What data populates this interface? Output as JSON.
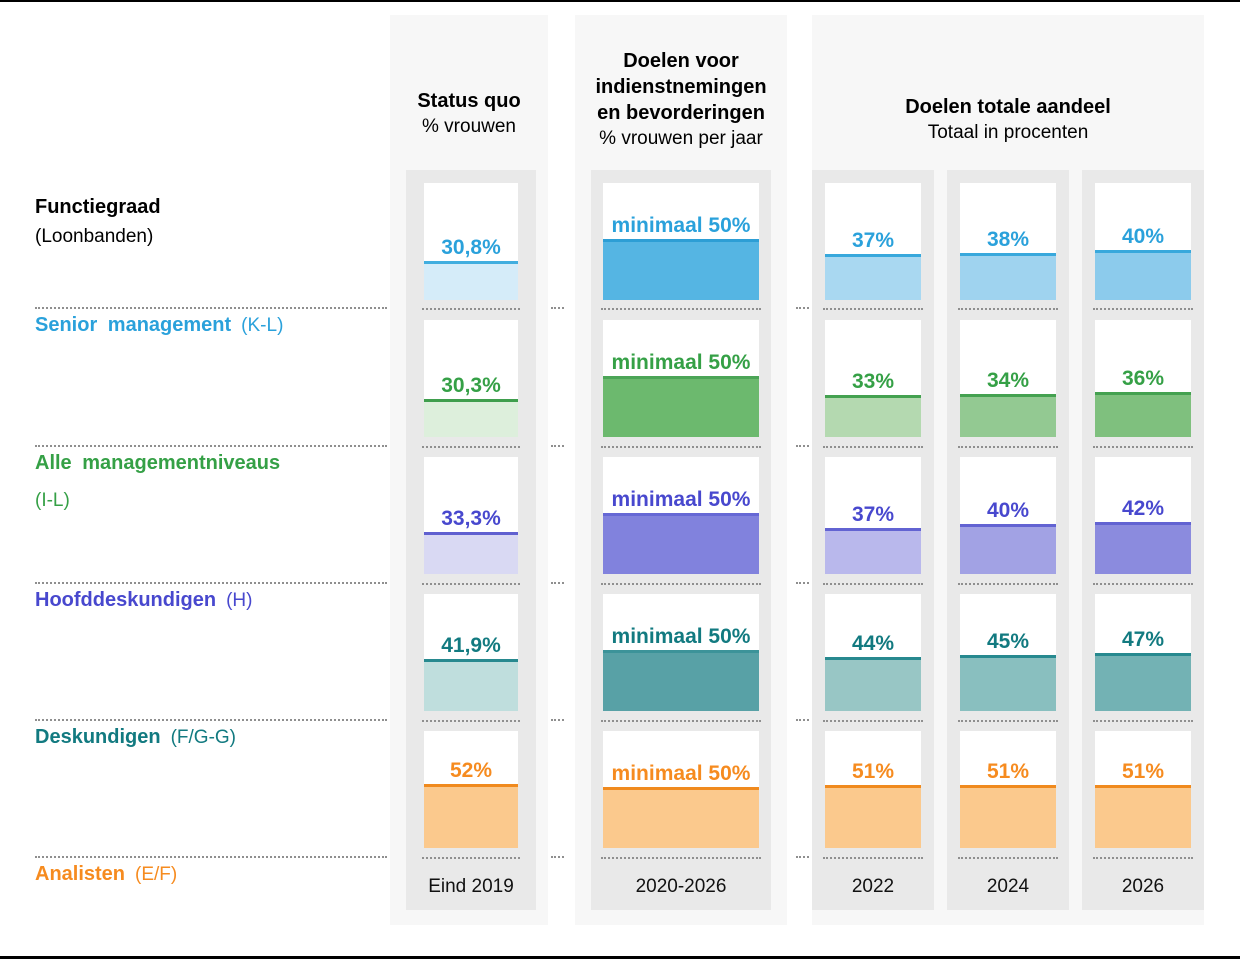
{
  "palette": {
    "panel_bg": "#f7f7f7",
    "strip_bg": "#e9e9e9",
    "separator_dots": "#8f8f8f",
    "rule": "#000000"
  },
  "left_column": {
    "title": "Functiegraad",
    "subtitle": "(Loonbanden)"
  },
  "columns": {
    "status": {
      "title": "Status quo",
      "subtitle": "% vrouwen",
      "footer": "Eind 2019"
    },
    "target": {
      "title_lines": [
        "Doelen voor",
        "indienstnemingen",
        "en bevorderingen"
      ],
      "subtitle": "% vrouwen per jaar",
      "footer": "2020-2026"
    },
    "total": {
      "title": "Doelen totale aandeel",
      "subtitle": "Totaal in procenten",
      "footers": [
        "2022",
        "2024",
        "2026"
      ]
    }
  },
  "rows": [
    {
      "id": "senior-management",
      "label": "Senior management",
      "band": "(K-L)",
      "band_new_line": false,
      "colors": {
        "text": "#2aa1db"
      },
      "status": {
        "label": "30,8%",
        "value": 30.8,
        "fill": "#d5ecf9",
        "border": "#41aedf"
      },
      "target": {
        "label": "minimaal 50%",
        "value": 50,
        "fill": "#55b5e3",
        "border": "#2d9ed5"
      },
      "years": [
        {
          "label": "37%",
          "value": 37,
          "fill": "#a9d8f1",
          "border": "#38a8dc"
        },
        {
          "label": "38%",
          "value": 38,
          "fill": "#9fd3ef",
          "border": "#38a8dc"
        },
        {
          "label": "40%",
          "value": 40,
          "fill": "#8ccbec",
          "border": "#38a8dc"
        }
      ]
    },
    {
      "id": "alle-managementniveaus",
      "label": "Alle managementniveaus",
      "band": "(I-L)",
      "band_new_line": true,
      "colors": {
        "text": "#35a046"
      },
      "status": {
        "label": "30,3%",
        "value": 30.3,
        "fill": "#ddefdc",
        "border": "#3f9e4d"
      },
      "target": {
        "label": "minimaal 50%",
        "value": 50,
        "fill": "#6cb96e",
        "border": "#4ca557"
      },
      "years": [
        {
          "label": "33%",
          "value": 33,
          "fill": "#b4d9b0",
          "border": "#44a150"
        },
        {
          "label": "34%",
          "value": 34,
          "fill": "#93c992",
          "border": "#44a150"
        },
        {
          "label": "36%",
          "value": 36,
          "fill": "#7fc07e",
          "border": "#44a150"
        }
      ]
    },
    {
      "id": "hoofddeskundigen",
      "label": "Hoofddeskundigen",
      "band": "(H)",
      "band_new_line": false,
      "colors": {
        "text": "#4848ce"
      },
      "status": {
        "label": "33,3%",
        "value": 33.3,
        "fill": "#d9d9f3",
        "border": "#6060d0"
      },
      "target": {
        "label": "minimaal 50%",
        "value": 50,
        "fill": "#8182dd",
        "border": "#6668d5"
      },
      "years": [
        {
          "label": "37%",
          "value": 37,
          "fill": "#b9b8ec",
          "border": "#6263d2"
        },
        {
          "label": "40%",
          "value": 40,
          "fill": "#a2a2e4",
          "border": "#6263d2"
        },
        {
          "label": "42%",
          "value": 42,
          "fill": "#8b8bde",
          "border": "#6263d2"
        }
      ]
    },
    {
      "id": "deskundigen",
      "label": "Deskundigen",
      "band": "(F/G-G)",
      "band_new_line": false,
      "colors": {
        "text": "#127a80"
      },
      "status": {
        "label": "41,9%",
        "value": 41.9,
        "fill": "#bfdedd",
        "border": "#27898f"
      },
      "target": {
        "label": "minimaal 50%",
        "value": 50,
        "fill": "#58a1a6",
        "border": "#3c9399"
      },
      "years": [
        {
          "label": "44%",
          "value": 44,
          "fill": "#98c6c5",
          "border": "#27898f"
        },
        {
          "label": "45%",
          "value": 45,
          "fill": "#89bfbf",
          "border": "#27898f"
        },
        {
          "label": "47%",
          "value": 47,
          "fill": "#73b2b4",
          "border": "#27898f"
        }
      ]
    },
    {
      "id": "analisten",
      "label": "Analisten",
      "band": "(E/F)",
      "band_new_line": false,
      "colors": {
        "text": "#f68b1f"
      },
      "status": {
        "label": "52%",
        "value": 52,
        "fill": "#fbc98d",
        "border": "#f08a1e"
      },
      "target": {
        "label": "minimaal 50%",
        "value": 50,
        "fill": "#fbc98d",
        "border": "#f08a1e"
      },
      "years": [
        {
          "label": "51%",
          "value": 51,
          "fill": "#fbc98d",
          "border": "#f08a1e"
        },
        {
          "label": "51%",
          "value": 51,
          "fill": "#fbc98d",
          "border": "#f08a1e"
        },
        {
          "label": "51%",
          "value": 51,
          "fill": "#fbc98d",
          "border": "#f08a1e"
        }
      ]
    }
  ],
  "chart_data": {
    "type": "bar",
    "title": "Doelen voor vrouwen per functiegraad (loonbanden)",
    "categories": [
      "Senior management (K-L)",
      "Alle managementniveaus (I-L)",
      "Hoofddeskundigen (H)",
      "Deskundigen (F/G-G)",
      "Analisten (E/F)"
    ],
    "series": [
      {
        "name": "Status quo % vrouwen — Eind 2019",
        "values": [
          30.8,
          30.3,
          33.3,
          41.9,
          52
        ]
      },
      {
        "name": "Doelen voor indienstnemingen en bevorderingen % vrouwen per jaar — 2020-2026 (minimaal)",
        "values": [
          50,
          50,
          50,
          50,
          50
        ]
      },
      {
        "name": "Doelen totale aandeel — 2022",
        "values": [
          37,
          33,
          37,
          44,
          51
        ]
      },
      {
        "name": "Doelen totale aandeel — 2024",
        "values": [
          38,
          34,
          40,
          45,
          51
        ]
      },
      {
        "name": "Doelen totale aandeel — 2026",
        "values": [
          40,
          36,
          42,
          47,
          51
        ]
      }
    ],
    "ylim": [
      0,
      100
    ],
    "value_suffix": "%",
    "grid": false,
    "legend_position": "column-headers"
  }
}
